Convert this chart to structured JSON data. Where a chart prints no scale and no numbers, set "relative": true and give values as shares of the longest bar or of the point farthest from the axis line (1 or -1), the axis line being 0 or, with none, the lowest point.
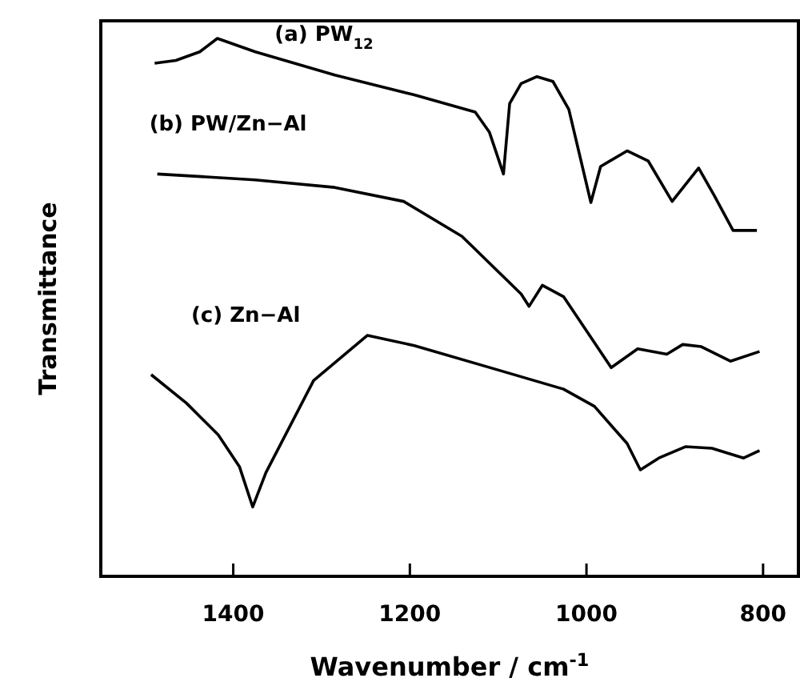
{
  "chart_data": {
    "type": "line",
    "relative": true,
    "xlabel": "Wavenumber / cm$^{-1}$",
    "ylabel": "Transmittance",
    "xlim": [
      1550,
      760
    ],
    "xticks": [
      1400,
      1200,
      1000,
      800
    ],
    "grid": false,
    "marker": "none",
    "line_style": "solid",
    "series": [
      {
        "name": "(a) PW$_{12}$",
        "color": "#000000",
        "x": [
          1489,
          1465,
          1438,
          1418,
          1375,
          1285,
          1195,
          1126,
          1110,
          1094,
          1087,
          1074,
          1056,
          1038,
          1020,
          995,
          984,
          954,
          930,
          903,
          873,
          855,
          834,
          807
        ],
        "values": [
          0.954,
          0.959,
          0.975,
          1.0,
          0.975,
          0.932,
          0.895,
          0.863,
          0.826,
          0.748,
          0.879,
          0.916,
          0.929,
          0.92,
          0.868,
          0.695,
          0.762,
          0.791,
          0.772,
          0.697,
          0.759,
          0.707,
          0.643,
          0.643
        ]
      },
      {
        "name": "(b) PW/Zn−Al",
        "color": "#000000",
        "x": [
          1486,
          1375,
          1285,
          1207,
          1141,
          1074,
          1065,
          1050,
          1026,
          972,
          942,
          909,
          891,
          870,
          837,
          804
        ],
        "values": [
          0.748,
          0.737,
          0.723,
          0.697,
          0.632,
          0.525,
          0.502,
          0.541,
          0.52,
          0.388,
          0.423,
          0.413,
          0.431,
          0.427,
          0.4,
          0.418
        ]
      },
      {
        "name": "(c) Zn−Al",
        "color": "#000000",
        "x": [
          1493,
          1453,
          1417,
          1393,
          1378,
          1363,
          1309,
          1248,
          1195,
          1105,
          1026,
          991,
          954,
          939,
          918,
          888,
          858,
          822,
          804
        ],
        "values": [
          0.375,
          0.322,
          0.263,
          0.204,
          0.129,
          0.193,
          0.364,
          0.448,
          0.429,
          0.386,
          0.348,
          0.316,
          0.247,
          0.198,
          0.22,
          0.241,
          0.238,
          0.22,
          0.234
        ]
      }
    ]
  }
}
